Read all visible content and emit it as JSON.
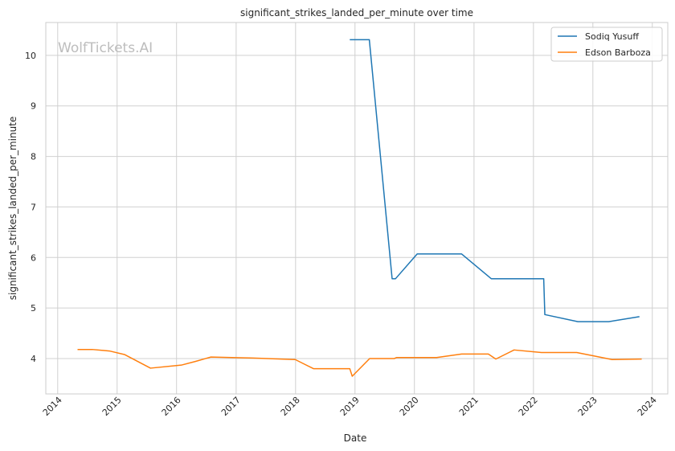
{
  "chart_data": {
    "type": "line",
    "title": "significant_strikes_landed_per_minute over time",
    "xlabel": "Date",
    "ylabel": "significant_strikes_landed_per_minute",
    "watermark": "WolfTickets.AI",
    "x_ticks": [
      "2014",
      "2015",
      "2016",
      "2017",
      "2018",
      "2019",
      "2020",
      "2021",
      "2022",
      "2023",
      "2024"
    ],
    "y_ticks": [
      "4",
      "5",
      "6",
      "7",
      "8",
      "9",
      "10"
    ],
    "xlim": [
      "2013-10-20",
      "2024-04-05"
    ],
    "ylim": [
      3.3,
      10.65
    ],
    "grid": true,
    "legend_position": "top-right",
    "series": [
      {
        "name": "Sodiq Yusuff",
        "color": "#1f77b4",
        "points": [
          [
            "2018-11-30",
            10.31
          ],
          [
            "2019-03-30",
            10.31
          ],
          [
            "2019-08-17",
            5.58
          ],
          [
            "2019-09-07",
            5.58
          ],
          [
            "2020-01-18",
            6.07
          ],
          [
            "2020-10-17",
            6.07
          ],
          [
            "2021-04-17",
            5.58
          ],
          [
            "2022-03-05",
            5.58
          ],
          [
            "2022-03-12",
            4.87
          ],
          [
            "2022-10-01",
            4.73
          ],
          [
            "2023-04-08",
            4.73
          ],
          [
            "2023-10-14",
            4.83
          ]
        ]
      },
      {
        "name": "Edson Barboza",
        "color": "#ff7f0e",
        "points": [
          [
            "2014-05-03",
            4.18
          ],
          [
            "2014-08-01",
            4.18
          ],
          [
            "2014-11-15",
            4.15
          ],
          [
            "2015-02-15",
            4.08
          ],
          [
            "2015-07-25",
            3.81
          ],
          [
            "2016-01-30",
            3.87
          ],
          [
            "2016-04-23",
            3.94
          ],
          [
            "2016-07-30",
            4.03
          ],
          [
            "2017-04-15",
            4.01
          ],
          [
            "2017-12-30",
            3.98
          ],
          [
            "2018-04-21",
            3.8
          ],
          [
            "2018-11-30",
            3.8
          ],
          [
            "2018-12-15",
            3.65
          ],
          [
            "2019-04-01",
            4.0
          ],
          [
            "2019-08-30",
            4.0
          ],
          [
            "2019-09-14",
            4.02
          ],
          [
            "2020-05-16",
            4.02
          ],
          [
            "2020-10-17",
            4.09
          ],
          [
            "2021-03-30",
            4.09
          ],
          [
            "2021-05-15",
            3.99
          ],
          [
            "2021-09-04",
            4.17
          ],
          [
            "2022-02-19",
            4.12
          ],
          [
            "2022-09-24",
            4.12
          ],
          [
            "2023-04-29",
            3.98
          ],
          [
            "2023-10-28",
            3.99
          ]
        ]
      }
    ]
  }
}
